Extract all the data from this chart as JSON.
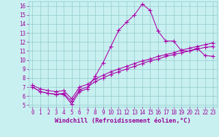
{
  "xlabel": "Windchill (Refroidissement éolien,°C)",
  "bg_color": "#c8f0f0",
  "grid_color": "#90c8cc",
  "line_color": "#aa00aa",
  "xlim": [
    -0.5,
    23.5
  ],
  "ylim": [
    4.8,
    16.5
  ],
  "yticks": [
    5,
    6,
    7,
    8,
    9,
    10,
    11,
    12,
    13,
    14,
    15,
    16
  ],
  "xticks": [
    0,
    1,
    2,
    3,
    4,
    5,
    6,
    7,
    8,
    9,
    10,
    11,
    12,
    13,
    14,
    15,
    16,
    17,
    18,
    19,
    20,
    21,
    22,
    23
  ],
  "line1_x": [
    0,
    1,
    2,
    3,
    4,
    5,
    6,
    7,
    8,
    9,
    10,
    11,
    12,
    13,
    14,
    15,
    16,
    17,
    18,
    19,
    20,
    21,
    22,
    23
  ],
  "line1_y": [
    7.0,
    6.5,
    6.3,
    6.2,
    6.2,
    5.1,
    6.5,
    6.8,
    8.2,
    9.7,
    11.5,
    13.3,
    14.2,
    15.0,
    16.2,
    15.5,
    13.2,
    12.1,
    12.1,
    11.0,
    11.0,
    11.3,
    10.5,
    10.4
  ],
  "line2_x": [
    0,
    1,
    2,
    3,
    4,
    5,
    6,
    7,
    8,
    9,
    10,
    11,
    12,
    13,
    14,
    15,
    16,
    17,
    18,
    19,
    20,
    21,
    22,
    23
  ],
  "line2_y": [
    7.0,
    6.5,
    6.3,
    6.2,
    6.3,
    5.4,
    6.7,
    7.0,
    7.6,
    8.0,
    8.4,
    8.7,
    9.0,
    9.3,
    9.6,
    9.9,
    10.1,
    10.4,
    10.6,
    10.8,
    11.0,
    11.2,
    11.4,
    11.5
  ],
  "line3_x": [
    0,
    1,
    2,
    3,
    4,
    5,
    6,
    7,
    8,
    9,
    10,
    11,
    12,
    13,
    14,
    15,
    16,
    17,
    18,
    19,
    20,
    21,
    22,
    23
  ],
  "line3_y": [
    7.2,
    6.8,
    6.6,
    6.5,
    6.6,
    5.7,
    7.0,
    7.3,
    7.9,
    8.3,
    8.7,
    9.0,
    9.3,
    9.6,
    9.9,
    10.1,
    10.4,
    10.6,
    10.8,
    11.1,
    11.3,
    11.5,
    11.7,
    11.9
  ],
  "tick_color": "#990099",
  "label_color": "#990099",
  "tick_fontsize": 5.5,
  "xlabel_fontsize": 6.5
}
